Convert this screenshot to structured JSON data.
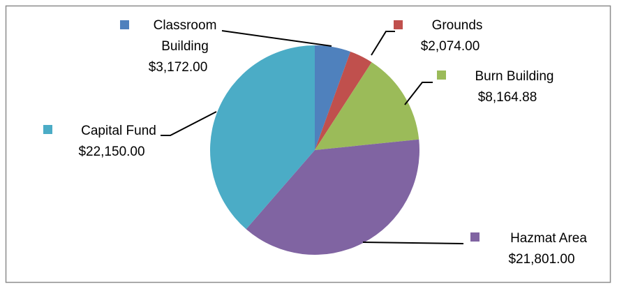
{
  "chart_data": {
    "type": "pie",
    "categories": [
      "Classroom Building",
      "Grounds",
      "Burn Building",
      "Hazmat Area",
      "Capital Fund"
    ],
    "values": [
      3172,
      2074,
      8164.88,
      21801,
      22150
    ],
    "value_labels": [
      "$3,172.00",
      "$2,074.00",
      "$8,164.88",
      "$21,801.00",
      "$22,150.00"
    ],
    "colors": [
      "#4f81bd",
      "#c0504d",
      "#9bbb59",
      "#8064a2",
      "#4bacc6"
    ]
  }
}
